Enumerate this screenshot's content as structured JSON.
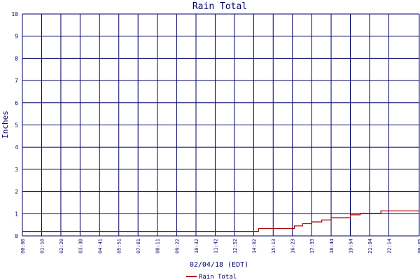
{
  "chart_data": {
    "type": "line",
    "title": "Rain Total",
    "xlabel": "02/04/18 (EDT)",
    "ylabel": "Inches",
    "ylim": [
      0,
      10
    ],
    "yticks": [
      "0",
      "1",
      "2",
      "3",
      "4",
      "5",
      "6",
      "7",
      "8",
      "9",
      "10"
    ],
    "xticks": [
      "00:00",
      "01:10",
      "02:20",
      "03:30",
      "04:41",
      "05:51",
      "07:01",
      "08:11",
      "09:22",
      "10:32",
      "11:42",
      "12:52",
      "14:02",
      "15:13",
      "16:23",
      "17:33",
      "18:44",
      "19:54",
      "21:04",
      "22:14",
      "00:05"
    ],
    "grid": true,
    "legend": "bottom",
    "series": [
      {
        "name": "Rain Total",
        "color": "#aa0000",
        "step": true,
        "x": [
          "00:00",
          "14:02",
          "14:20",
          "16:00",
          "16:30",
          "17:00",
          "17:33",
          "18:10",
          "18:44",
          "19:30",
          "19:54",
          "20:30",
          "21:04",
          "21:45",
          "00:05"
        ],
        "values": [
          0.2,
          0.2,
          0.33,
          0.33,
          0.45,
          0.55,
          0.63,
          0.72,
          0.82,
          0.82,
          0.95,
          1.02,
          1.02,
          1.13,
          1.13
        ]
      }
    ]
  },
  "colors": {
    "grid": "#000066",
    "title": "#000066",
    "text": "#000066",
    "series": "#aa0000"
  }
}
